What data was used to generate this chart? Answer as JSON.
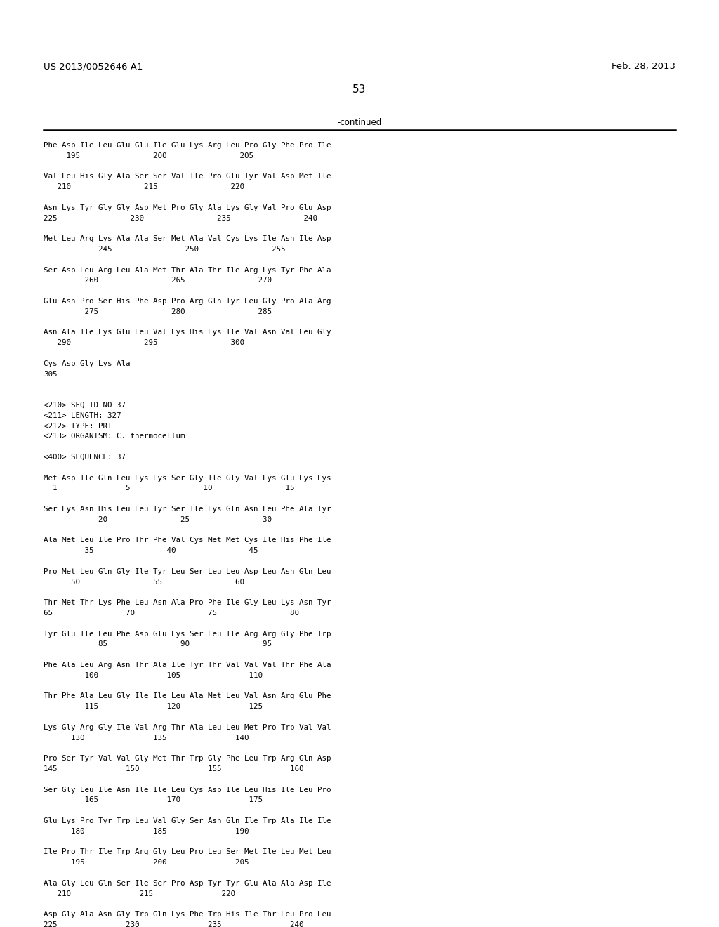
{
  "header_left": "US 2013/0052646 A1",
  "header_right": "Feb. 28, 2013",
  "page_number": "53",
  "continued_label": "-continued",
  "background_color": "#ffffff",
  "text_color": "#000000",
  "lines": [
    "Phe Asp Ile Leu Glu Glu Ile Glu Lys Arg Leu Pro Gly Phe Pro Ile",
    "     195                200                205",
    "",
    "Val Leu His Gly Ala Ser Ser Val Ile Pro Glu Tyr Val Asp Met Ile",
    "   210                215                220",
    "",
    "Asn Lys Tyr Gly Gly Asp Met Pro Gly Ala Lys Gly Val Pro Glu Asp",
    "225                230                235                240",
    "",
    "Met Leu Arg Lys Ala Ala Ser Met Ala Val Cys Lys Ile Asn Ile Asp",
    "            245                250                255",
    "",
    "Ser Asp Leu Arg Leu Ala Met Thr Ala Thr Ile Arg Lys Tyr Phe Ala",
    "         260                265                270",
    "",
    "Glu Asn Pro Ser His Phe Asp Pro Arg Gln Tyr Leu Gly Pro Ala Arg",
    "         275                280                285",
    "",
    "Asn Ala Ile Lys Glu Leu Val Lys His Lys Ile Val Asn Val Leu Gly",
    "   290                295                300",
    "",
    "Cys Asp Gly Lys Ala",
    "305",
    "",
    "",
    "<210> SEQ ID NO 37",
    "<211> LENGTH: 327",
    "<212> TYPE: PRT",
    "<213> ORGANISM: C. thermocellum",
    "",
    "<400> SEQUENCE: 37",
    "",
    "Met Asp Ile Gln Leu Lys Lys Ser Gly Ile Gly Val Lys Glu Lys Lys",
    "  1               5                10                15",
    "",
    "Ser Lys Asn His Leu Leu Tyr Ser Ile Lys Gln Asn Leu Phe Ala Tyr",
    "            20                25                30",
    "",
    "Ala Met Leu Ile Pro Thr Phe Val Cys Met Met Cys Ile His Phe Ile",
    "         35                40                45",
    "",
    "Pro Met Leu Gln Gly Ile Tyr Leu Ser Leu Leu Asp Leu Asn Gln Leu",
    "      50                55                60",
    "",
    "Thr Met Thr Lys Phe Leu Asn Ala Pro Phe Ile Gly Leu Lys Asn Tyr",
    "65                70                75                80",
    "",
    "Tyr Glu Ile Leu Phe Asp Glu Lys Ser Leu Ile Arg Arg Gly Phe Trp",
    "            85                90                95",
    "",
    "Phe Ala Leu Arg Asn Thr Ala Ile Tyr Thr Val Val Val Thr Phe Ala",
    "         100               105               110",
    "",
    "Thr Phe Ala Leu Gly Ile Ile Leu Ala Met Leu Val Asn Arg Glu Phe",
    "         115               120               125",
    "",
    "Lys Gly Arg Gly Ile Val Arg Thr Ala Leu Leu Met Pro Trp Val Val",
    "      130               135               140",
    "",
    "Pro Ser Tyr Val Val Gly Met Thr Trp Gly Phe Leu Trp Arg Gln Asp",
    "145               150               155               160",
    "",
    "Ser Gly Leu Ile Asn Ile Ile Leu Cys Asp Ile Leu His Ile Leu Pro",
    "         165               170               175",
    "",
    "Glu Lys Pro Tyr Trp Leu Val Gly Ser Asn Gln Ile Trp Ala Ile Ile",
    "      180               185               190",
    "",
    "Ile Pro Thr Ile Trp Arg Gly Leu Pro Leu Ser Met Ile Leu Met Leu",
    "      195               200               205",
    "",
    "Ala Gly Leu Gln Ser Ile Ser Pro Asp Tyr Tyr Glu Ala Ala Asp Ile",
    "   210               215               220",
    "",
    "Asp Gly Ala Asn Gly Trp Gln Lys Phe Trp His Ile Thr Leu Pro Leu",
    "225               230               235               240"
  ]
}
